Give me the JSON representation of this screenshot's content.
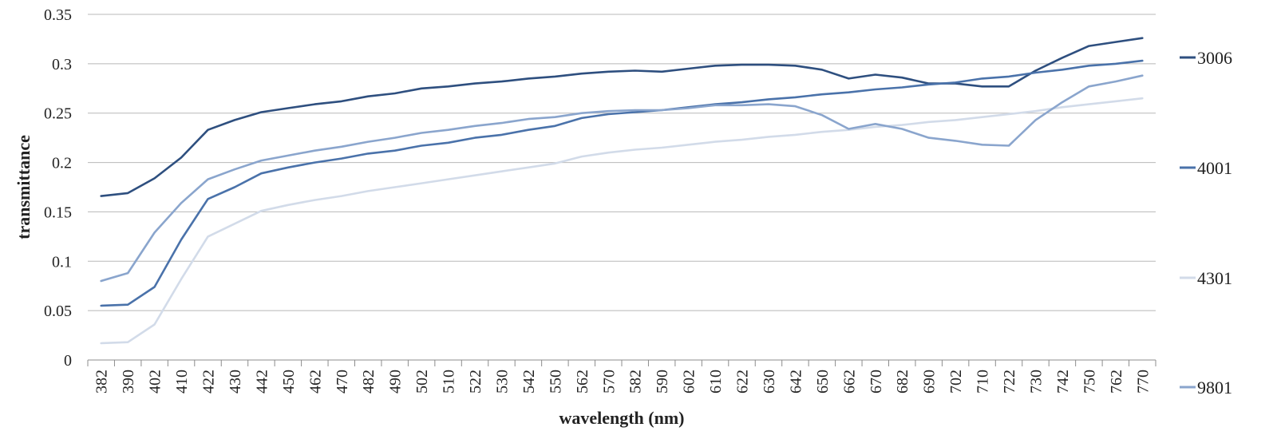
{
  "chart_data": {
    "type": "line",
    "xlabel": "wavelength (nm)",
    "ylabel": "transmittance",
    "ylim": [
      0,
      0.35
    ],
    "yticks": [
      "0",
      "0.05",
      "0.1",
      "0.15",
      "0.2",
      "0.25",
      "0.3",
      "0.35"
    ],
    "grid": "horizontal",
    "legend_position": "right",
    "categories": [
      "382",
      "390",
      "402",
      "410",
      "422",
      "430",
      "442",
      "450",
      "462",
      "470",
      "482",
      "490",
      "502",
      "510",
      "522",
      "530",
      "542",
      "550",
      "562",
      "570",
      "582",
      "590",
      "602",
      "610",
      "622",
      "630",
      "642",
      "650",
      "662",
      "670",
      "682",
      "690",
      "702",
      "710",
      "722",
      "730",
      "742",
      "750",
      "762",
      "770"
    ],
    "series": [
      {
        "name": "3006",
        "color": "#2e4f7f",
        "values": [
          0.166,
          0.169,
          0.184,
          0.205,
          0.233,
          0.243,
          0.251,
          0.255,
          0.259,
          0.262,
          0.267,
          0.27,
          0.275,
          0.277,
          0.28,
          0.282,
          0.285,
          0.287,
          0.29,
          0.292,
          0.293,
          0.292,
          0.295,
          0.298,
          0.299,
          0.299,
          0.298,
          0.294,
          0.285,
          0.289,
          0.286,
          0.28,
          0.28,
          0.277,
          0.277,
          0.293,
          0.306,
          0.318,
          0.322,
          0.326
        ]
      },
      {
        "name": "4001",
        "color": "#4a72aa",
        "values": [
          0.055,
          0.056,
          0.074,
          0.122,
          0.163,
          0.175,
          0.189,
          0.195,
          0.2,
          0.204,
          0.209,
          0.212,
          0.217,
          0.22,
          0.225,
          0.228,
          0.233,
          0.237,
          0.245,
          0.249,
          0.251,
          0.253,
          0.256,
          0.259,
          0.261,
          0.264,
          0.266,
          0.269,
          0.271,
          0.274,
          0.276,
          0.279,
          0.281,
          0.285,
          0.287,
          0.291,
          0.294,
          0.298,
          0.3,
          0.303
        ]
      },
      {
        "name": "4301",
        "color": "#d2dbe9",
        "values": [
          0.017,
          0.018,
          0.036,
          0.082,
          0.125,
          0.138,
          0.151,
          0.157,
          0.162,
          0.166,
          0.171,
          0.175,
          0.179,
          0.183,
          0.187,
          0.191,
          0.195,
          0.199,
          0.206,
          0.21,
          0.213,
          0.215,
          0.218,
          0.221,
          0.223,
          0.226,
          0.228,
          0.231,
          0.233,
          0.236,
          0.238,
          0.241,
          0.243,
          0.246,
          0.249,
          0.252,
          0.256,
          0.259,
          0.262,
          0.265
        ]
      },
      {
        "name": "9801",
        "color": "#8aa5cd",
        "values": [
          0.08,
          0.088,
          0.129,
          0.159,
          0.183,
          0.193,
          0.202,
          0.207,
          0.212,
          0.216,
          0.221,
          0.225,
          0.23,
          0.233,
          0.237,
          0.24,
          0.244,
          0.246,
          0.25,
          0.252,
          0.253,
          0.253,
          0.255,
          0.258,
          0.258,
          0.259,
          0.257,
          0.248,
          0.234,
          0.239,
          0.234,
          0.225,
          0.222,
          0.218,
          0.217,
          0.243,
          0.261,
          0.277,
          0.282,
          0.288
        ]
      }
    ]
  }
}
